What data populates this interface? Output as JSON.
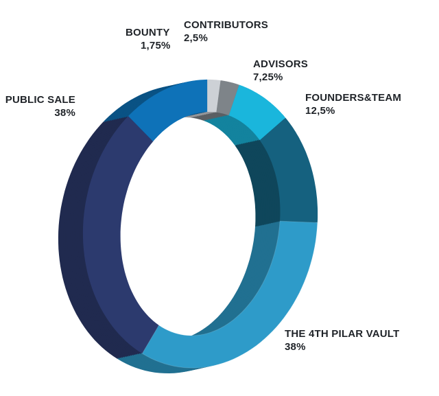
{
  "chart_data": {
    "type": "pie",
    "style": "3d-donut",
    "title": "",
    "slices": [
      {
        "name": "THE 4TH PILAR VAULT",
        "label": "38%",
        "value": 38,
        "color": "#2e9bc9"
      },
      {
        "name": "PUBLIC SALE",
        "label": "38%",
        "value": 38,
        "color": "#2c3a6e"
      },
      {
        "name": "BOUNTY",
        "label": "1,75%",
        "value": 1.75,
        "color": "#cdd1d6"
      },
      {
        "name": "CONTRIBUTORS",
        "label": "2,5%",
        "value": 2.5,
        "color": "#7e8489"
      },
      {
        "name": "ADVISORS",
        "label": "7,25%",
        "value": 7.25,
        "color": "#1ab6dc"
      },
      {
        "name": "FOUNDERS&TEAM",
        "label": "12,5%",
        "value": 12.5,
        "color": "#15617f"
      }
    ],
    "extra_slice_color": "#0e72b8",
    "legend": "none"
  }
}
